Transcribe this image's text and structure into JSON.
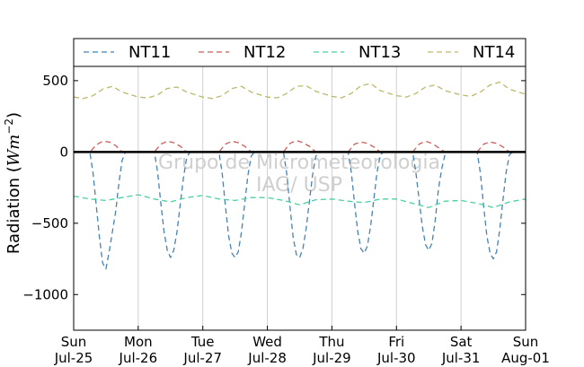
{
  "chart_data": {
    "type": "line",
    "ylabel_main": "Radiation (",
    "ylabel_unit": "Wm",
    "ylabel_exp": "−2",
    "ylabel_close": ")",
    "ylim": [
      -1250,
      600
    ],
    "yticks": [
      500,
      0,
      -500,
      -1000
    ],
    "ytick_labels": [
      "500",
      "0",
      "−500",
      "−1000"
    ],
    "xlim": [
      "2011-07-25",
      "2011-08-01"
    ],
    "xticks": [
      {
        "day": "Sun",
        "date": "Jul-25"
      },
      {
        "day": "Mon",
        "date": "Jul-26"
      },
      {
        "day": "Tue",
        "date": "Jul-27"
      },
      {
        "day": "Wed",
        "date": "Jul-28"
      },
      {
        "day": "Thu",
        "date": "Jul-29"
      },
      {
        "day": "Fri",
        "date": "Jul-30"
      },
      {
        "day": "Sat",
        "date": "Jul-31"
      },
      {
        "day": "Sun",
        "date": "Aug-01"
      }
    ],
    "grid": "vertical",
    "legend_position": "top",
    "watermark_line1": "Grupo de Micrometeorologia",
    "watermark_line2": "IAG/ USP",
    "series": [
      {
        "name": "NT11",
        "color": "#4682b4",
        "x_days": [
          0.0,
          0.25,
          0.3,
          0.35,
          0.4,
          0.45,
          0.5,
          0.55,
          0.6,
          0.65,
          0.7,
          0.75,
          0.8,
          1.0,
          1.25,
          1.3,
          1.35,
          1.4,
          1.45,
          1.5,
          1.55,
          1.6,
          1.65,
          1.7,
          1.75,
          1.8,
          2.0,
          2.25,
          2.3,
          2.35,
          2.4,
          2.45,
          2.5,
          2.55,
          2.6,
          2.65,
          2.7,
          2.75,
          2.8,
          3.0,
          3.25,
          3.3,
          3.35,
          3.4,
          3.45,
          3.5,
          3.55,
          3.6,
          3.65,
          3.7,
          3.75,
          3.8,
          4.0,
          4.25,
          4.3,
          4.35,
          4.4,
          4.45,
          4.5,
          4.55,
          4.6,
          4.65,
          4.7,
          4.75,
          4.8,
          5.0,
          5.25,
          5.3,
          5.35,
          5.4,
          5.45,
          5.5,
          5.55,
          5.6,
          5.65,
          5.7,
          5.75,
          5.8,
          6.0,
          6.25,
          6.3,
          6.35,
          6.4,
          6.45,
          6.5,
          6.55,
          6.6,
          6.65,
          6.7,
          6.75,
          6.8,
          7.0
        ],
        "y": [
          0,
          0,
          -150,
          -380,
          -600,
          -780,
          -820,
          -700,
          -560,
          -420,
          -220,
          -60,
          0,
          0,
          0,
          -140,
          -360,
          -560,
          -690,
          -740,
          -690,
          -560,
          -370,
          -180,
          -40,
          0,
          0,
          0,
          -150,
          -380,
          -590,
          -710,
          -740,
          -700,
          -560,
          -360,
          -160,
          -30,
          0,
          0,
          0,
          -150,
          -380,
          -600,
          -720,
          -740,
          -680,
          -540,
          -350,
          -160,
          -30,
          0,
          0,
          0,
          -140,
          -360,
          -560,
          -680,
          -710,
          -660,
          -520,
          -330,
          -140,
          -20,
          0,
          0,
          0,
          -140,
          -330,
          -520,
          -650,
          -690,
          -640,
          -480,
          -260,
          -120,
          -20,
          0,
          0,
          0,
          -150,
          -380,
          -590,
          -710,
          -750,
          -700,
          -540,
          -330,
          -140,
          -20,
          0,
          0
        ]
      },
      {
        "name": "NT12",
        "color": "#cd5c5c",
        "x_days": [
          0.0,
          0.25,
          0.35,
          0.45,
          0.55,
          0.65,
          0.75,
          1.0,
          1.25,
          1.35,
          1.45,
          1.55,
          1.65,
          1.75,
          2.0,
          2.25,
          2.35,
          2.45,
          2.55,
          2.65,
          2.75,
          3.0,
          3.25,
          3.35,
          3.45,
          3.55,
          3.65,
          3.75,
          4.0,
          4.25,
          4.35,
          4.45,
          4.55,
          4.65,
          4.75,
          5.0,
          5.25,
          5.35,
          5.45,
          5.55,
          5.65,
          5.75,
          6.0,
          6.25,
          6.35,
          6.45,
          6.55,
          6.65,
          6.75,
          7.0
        ],
        "y": [
          0,
          0,
          50,
          75,
          70,
          45,
          0,
          0,
          0,
          55,
          75,
          65,
          40,
          0,
          0,
          0,
          55,
          75,
          65,
          40,
          0,
          0,
          0,
          60,
          80,
          65,
          40,
          0,
          0,
          0,
          55,
          70,
          60,
          35,
          0,
          0,
          0,
          55,
          75,
          60,
          30,
          0,
          0,
          0,
          55,
          70,
          60,
          35,
          0,
          0
        ]
      },
      {
        "name": "NT13",
        "color": "#48d1a0",
        "x_days": [
          0.0,
          0.25,
          0.5,
          0.75,
          1.0,
          1.25,
          1.5,
          1.75,
          2.0,
          2.25,
          2.5,
          2.75,
          3.0,
          3.25,
          3.5,
          3.75,
          4.0,
          4.25,
          4.5,
          4.75,
          5.0,
          5.25,
          5.5,
          5.75,
          6.0,
          6.25,
          6.5,
          6.75,
          7.0
        ],
        "y": [
          -310,
          -330,
          -340,
          -320,
          -300,
          -330,
          -350,
          -320,
          -305,
          -330,
          -340,
          -320,
          -320,
          -340,
          -370,
          -335,
          -330,
          -345,
          -355,
          -330,
          -330,
          -360,
          -390,
          -345,
          -340,
          -360,
          -390,
          -350,
          -330
        ]
      },
      {
        "name": "NT14",
        "color": "#bdb76b",
        "x_days": [
          0.0,
          0.15,
          0.3,
          0.45,
          0.6,
          0.75,
          1.0,
          1.15,
          1.3,
          1.45,
          1.6,
          1.75,
          2.0,
          2.15,
          2.3,
          2.45,
          2.6,
          2.75,
          3.0,
          3.15,
          3.3,
          3.45,
          3.6,
          3.75,
          4.0,
          4.15,
          4.3,
          4.45,
          4.6,
          4.75,
          5.0,
          5.15,
          5.3,
          5.45,
          5.6,
          5.75,
          6.0,
          6.15,
          6.3,
          6.45,
          6.6,
          6.75,
          7.0
        ],
        "y": [
          385,
          375,
          395,
          440,
          460,
          420,
          385,
          380,
          400,
          445,
          455,
          420,
          385,
          375,
          395,
          445,
          460,
          420,
          385,
          380,
          410,
          460,
          465,
          425,
          390,
          380,
          410,
          465,
          480,
          430,
          395,
          385,
          410,
          455,
          470,
          430,
          400,
          390,
          420,
          470,
          490,
          440,
          405
        ]
      }
    ]
  }
}
